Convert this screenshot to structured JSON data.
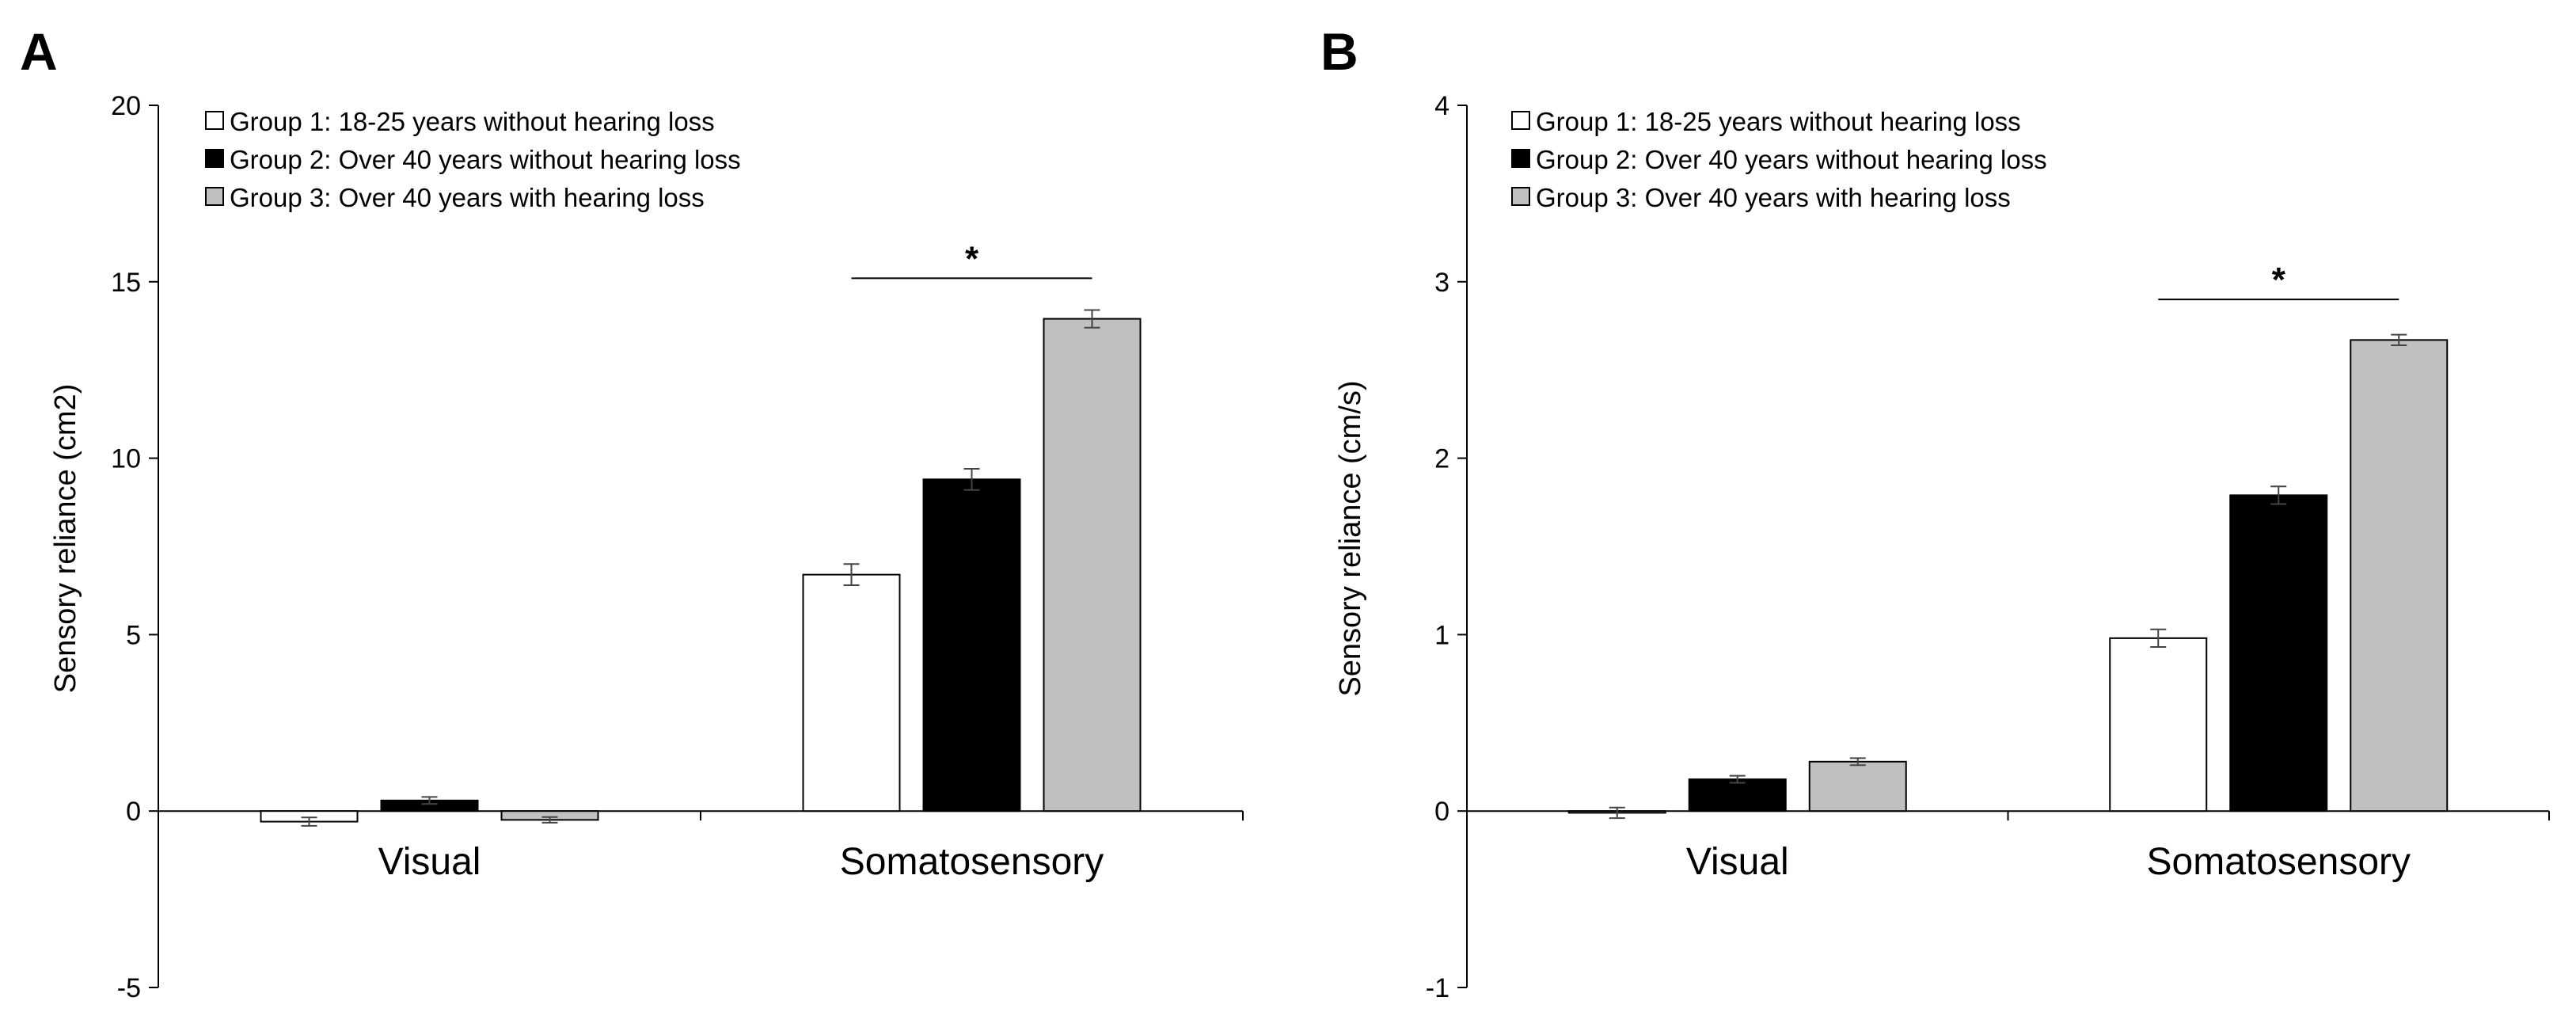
{
  "chart_data": [
    {
      "panel": "A",
      "type": "bar",
      "categories": [
        "Visual",
        "Somatosensory"
      ],
      "series": [
        {
          "name": "Group 1: 18-25 years without hearing loss",
          "color": "#ffffff",
          "values": [
            -0.3,
            6.7
          ],
          "errors": [
            0.12,
            0.3
          ]
        },
        {
          "name": "Group 2: Over 40 years without hearing loss",
          "color": "#000000",
          "values": [
            0.3,
            9.4
          ],
          "errors": [
            0.1,
            0.3
          ]
        },
        {
          "name": "Group 3: Over 40 years with hearing loss",
          "color": "#c0c0c0",
          "values": [
            -0.25,
            13.95
          ],
          "errors": [
            0.08,
            0.25
          ]
        }
      ],
      "ylabel": "Sensory reliance (cm2)",
      "xlabel": "",
      "ylim": [
        -5,
        20
      ],
      "yticks": [
        -5,
        0,
        5,
        10,
        15,
        20
      ],
      "significance": {
        "label": "*",
        "category": "Somatosensory",
        "from_series": 0,
        "to_series": 2,
        "level": 15.1
      },
      "grid": false,
      "legend_position": "top-left"
    },
    {
      "panel": "B",
      "type": "bar",
      "categories": [
        "Visual",
        "Somatosensory"
      ],
      "series": [
        {
          "name": "Group 1: 18-25 years without hearing loss",
          "color": "#ffffff",
          "values": [
            -0.01,
            0.98
          ],
          "errors": [
            0.03,
            0.05
          ]
        },
        {
          "name": "Group 2: Over 40 years without hearing loss",
          "color": "#000000",
          "values": [
            0.18,
            1.79
          ],
          "errors": [
            0.02,
            0.05
          ]
        },
        {
          "name": "Group 3: Over 40 years with hearing loss",
          "color": "#c0c0c0",
          "values": [
            0.28,
            2.67
          ],
          "errors": [
            0.02,
            0.03
          ]
        }
      ],
      "ylabel": "Sensory reliance (cm/s)",
      "xlabel": "",
      "ylim": [
        -1,
        4
      ],
      "yticks": [
        -1,
        0,
        1,
        2,
        3,
        4
      ],
      "significance": {
        "label": "*",
        "category": "Somatosensory",
        "from_series": 0,
        "to_series": 2,
        "level": 2.9
      },
      "grid": false,
      "legend_position": "top-left"
    }
  ]
}
